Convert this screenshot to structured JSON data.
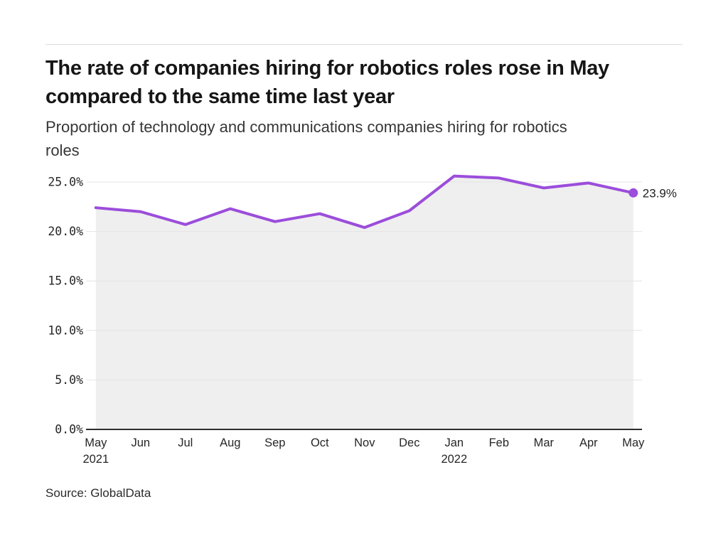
{
  "header": {
    "title_lines": [
      "The rate of companies hiring for robotics roles rose in May",
      "compared to the same time last year"
    ],
    "subtitle_lines": [
      "Proportion of technology and communications companies hiring for robotics",
      "roles"
    ]
  },
  "footer": {
    "source": "Source: GlobalData"
  },
  "chart_data": {
    "type": "line",
    "title": "The rate of companies hiring for robotics roles rose in May compared to the same time last year",
    "subtitle": "Proportion of technology and communications companies hiring for robotics roles",
    "source": "Source: GlobalData",
    "categories": [
      "May",
      "Jun",
      "Jul",
      "Aug",
      "Sep",
      "Oct",
      "Nov",
      "Dec",
      "Jan",
      "Feb",
      "Mar",
      "Apr",
      "May"
    ],
    "year_markers": [
      {
        "index": 0,
        "label": "2021"
      },
      {
        "index": 8,
        "label": "2022"
      }
    ],
    "values": [
      22.4,
      22.0,
      20.7,
      22.3,
      21.0,
      21.8,
      20.4,
      22.1,
      25.6,
      25.4,
      24.4,
      24.9,
      23.9
    ],
    "ylim": [
      0,
      25
    ],
    "ytick_labels": [
      "0.0%",
      "5.0%",
      "10.0%",
      "15.0%",
      "20.0%",
      "25.0%"
    ],
    "end_annotation": "23.9%",
    "grid": true,
    "legend": "none",
    "area_fill": true,
    "colors": {
      "line": "#9B4DDB",
      "area": "#EFEFEF",
      "grid": "#E4E4E4",
      "axis": "#2E2E2E",
      "tick_text": "#262626",
      "annotation_text": "#1F1F1F"
    }
  }
}
